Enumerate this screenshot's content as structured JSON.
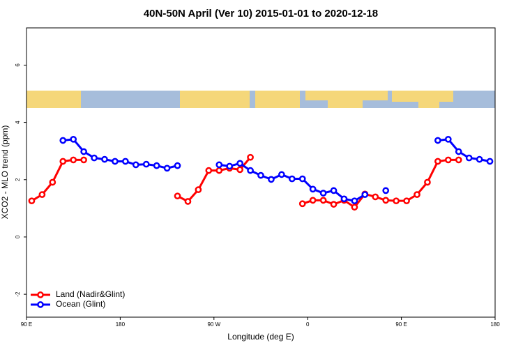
{
  "chart_data": {
    "type": "line",
    "title": "40N-50N April (Ver 10)   2015-01-01 to 2020-12-18",
    "xlabel": "Longitude (deg E)",
    "ylabel": "XCO2 - MLO trend (ppm)",
    "xlim": [
      90,
      540
    ],
    "ylim": [
      -2.8,
      7.3
    ],
    "xticks": [
      {
        "value": 90,
        "label": "90 E"
      },
      180,
      {
        "value": 270,
        "label": "90 W"
      },
      {
        "value": 360,
        "label": "0"
      },
      {
        "value": 450,
        "label": "90 E"
      },
      {
        "value": 540,
        "label": "180"
      }
    ],
    "yticks": [
      -2,
      0,
      2,
      4,
      6
    ],
    "legend": "bottom-left",
    "series": [
      {
        "name": "Land (Nadir&Glint)",
        "color": "#ff0000",
        "x": [
          95,
          105,
          115,
          125,
          135,
          145,
          190,
          235,
          245,
          255,
          265,
          275,
          285,
          295,
          305,
          330,
          355,
          365,
          375,
          385,
          395,
          405,
          415,
          425,
          435,
          445,
          455,
          465,
          475,
          485,
          495,
          505
        ],
        "values": [
          1.26,
          1.48,
          1.91,
          2.64,
          2.69,
          2.69,
          null,
          1.43,
          1.24,
          1.65,
          2.32,
          2.32,
          2.4,
          2.35,
          2.78,
          null,
          1.16,
          1.28,
          1.28,
          1.14,
          1.28,
          1.04,
          1.5,
          1.4,
          1.28,
          1.26,
          1.26,
          1.48,
          1.91,
          2.64,
          2.69,
          2.69
        ]
      },
      {
        "name": "Ocean (Glint)",
        "color": "#0000ff",
        "x": [
          125,
          135,
          145,
          155,
          165,
          175,
          185,
          195,
          205,
          215,
          225,
          235,
          255,
          275,
          285,
          295,
          305,
          315,
          325,
          335,
          345,
          355,
          365,
          375,
          385,
          395,
          405,
          415,
          425,
          435,
          460,
          485,
          495,
          505,
          515,
          525,
          535
        ],
        "values": [
          3.37,
          3.41,
          2.98,
          2.76,
          2.71,
          2.64,
          2.64,
          2.52,
          2.54,
          2.49,
          2.4,
          2.49,
          null,
          2.52,
          2.47,
          2.57,
          2.32,
          2.15,
          2.01,
          2.18,
          2.03,
          2.03,
          1.67,
          1.53,
          1.62,
          1.33,
          1.26,
          1.48,
          null,
          1.62,
          null,
          3.37,
          3.41,
          2.98,
          2.76,
          2.71,
          2.64
        ]
      }
    ]
  }
}
